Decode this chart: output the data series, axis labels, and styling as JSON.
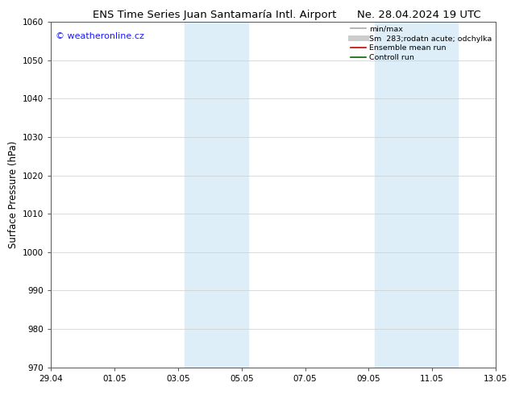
{
  "title_left": "ENS Time Series Juan Santamaría Intl. Airport",
  "title_right": "Ne. 28.04.2024 19 UTC",
  "ylabel": "Surface Pressure (hPa)",
  "watermark": "© weatheronline.cz",
  "watermark_color": "#1a1aff",
  "ylim": [
    970,
    1060
  ],
  "yticks": [
    970,
    980,
    990,
    1000,
    1010,
    1020,
    1030,
    1040,
    1050,
    1060
  ],
  "xlim": [
    0,
    14
  ],
  "xtick_labels": [
    "29.04",
    "01.05",
    "03.05",
    "05.05",
    "07.05",
    "09.05",
    "11.05",
    "13.05"
  ],
  "xtick_positions": [
    0,
    2,
    4,
    6,
    8,
    10,
    12,
    14
  ],
  "shade_bands": [
    {
      "x_start": 4.2,
      "x_end": 6.2
    },
    {
      "x_start": 10.2,
      "x_end": 12.8
    }
  ],
  "shade_color": "#ddeef8",
  "legend_items": [
    {
      "label": "min/max",
      "color": "#aaaaaa",
      "lw": 1.2
    },
    {
      "label": "Sm  283;rodatn acute; odchylka",
      "color": "#cccccc",
      "lw": 5
    },
    {
      "label": "Ensemble mean run",
      "color": "#cc0000",
      "lw": 1.2
    },
    {
      "label": "Controll run",
      "color": "#006600",
      "lw": 1.2
    }
  ],
  "bg_color": "#ffffff",
  "grid_color": "#cccccc",
  "title_fontsize": 9.5,
  "tick_fontsize": 7.5,
  "ylabel_fontsize": 8.5,
  "legend_fontsize": 6.8,
  "watermark_fontsize": 8
}
